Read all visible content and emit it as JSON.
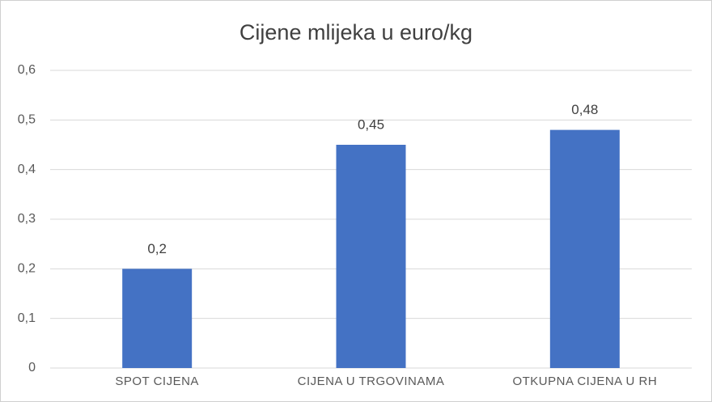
{
  "chart_data": {
    "type": "bar",
    "title": "Cijene mlijeka u euro/kg",
    "categories": [
      "SPOT CIJENA",
      "CIJENA U TRGOVINAMA",
      "OTKUPNA CIJENA U RH"
    ],
    "values": [
      0.2,
      0.45,
      0.48
    ],
    "value_labels": [
      "0,2",
      "0,45",
      "0,48"
    ],
    "color": "#4472c4",
    "ylim": [
      0,
      0.6
    ],
    "yticks": [
      0,
      {
        "value": 0.1,
        "label": "0,1"
      },
      {
        "value": 0.2,
        "label": "0,2"
      },
      {
        "value": 0.3,
        "label": "0,3"
      },
      {
        "value": 0.4,
        "label": "0,4"
      },
      {
        "value": 0.5,
        "label": "0,5"
      },
      {
        "value": 0.6,
        "label": "0,6"
      }
    ],
    "grid": true
  }
}
